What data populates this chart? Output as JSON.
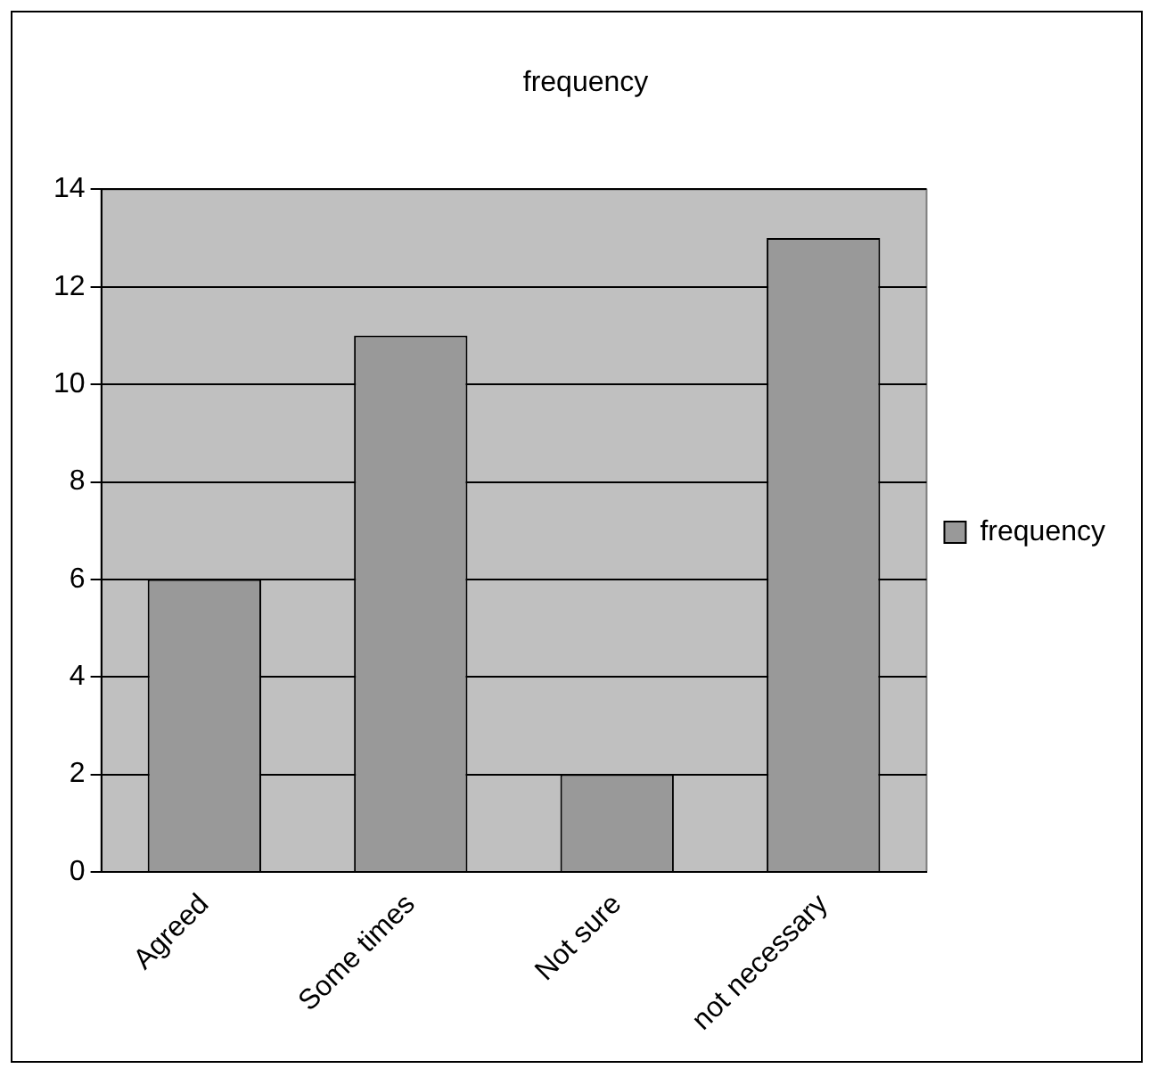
{
  "chart_data": {
    "type": "bar",
    "title": "frequency",
    "categories": [
      "Agreed",
      "Some times",
      "Not sure",
      "not necessary"
    ],
    "series": [
      {
        "name": "frequency",
        "color": "#999999",
        "values": [
          6,
          11,
          2,
          13
        ]
      }
    ],
    "ylim": [
      0,
      14
    ],
    "yticks": [
      0,
      2,
      4,
      6,
      8,
      10,
      12,
      14
    ],
    "grid": "y",
    "legend": "right"
  }
}
